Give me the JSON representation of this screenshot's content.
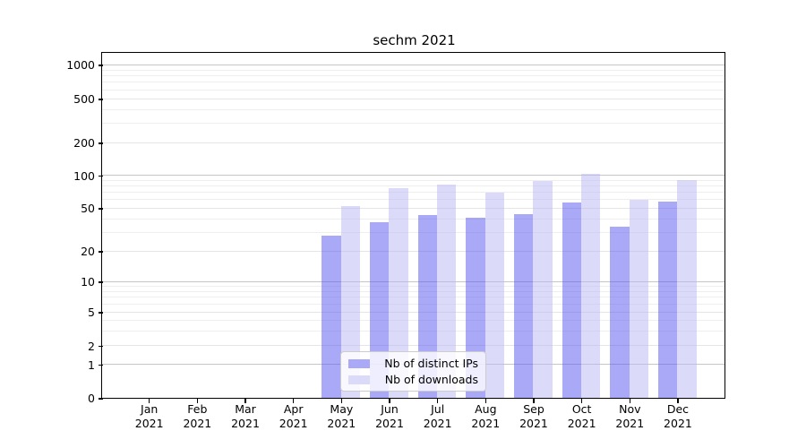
{
  "chart_data": {
    "type": "bar",
    "title": "sechm 2021",
    "year": "2021",
    "categories": [
      "Jan",
      "Feb",
      "Mar",
      "Apr",
      "May",
      "Jun",
      "Jul",
      "Aug",
      "Sep",
      "Oct",
      "Nov",
      "Dec"
    ],
    "series": [
      {
        "name": "Nb of distinct IPs",
        "values": [
          0,
          0,
          0,
          0,
          28,
          37,
          43,
          41,
          44,
          56,
          34,
          58
        ],
        "color": "#a9a9f8",
        "fill_rgba": "rgba(83,83,241,0.5)"
      },
      {
        "name": "Nb of downloads",
        "values": [
          0,
          0,
          0,
          0,
          52,
          76,
          82,
          70,
          89,
          103,
          60,
          90
        ],
        "color": "#dbdbf9",
        "fill_rgba": "rgba(183,183,243,0.5)"
      }
    ],
    "y_ticks": [
      0,
      1,
      2,
      5,
      10,
      20,
      50,
      100,
      200,
      500,
      1000
    ],
    "y_minor_gridlines": [
      3,
      4,
      6,
      7,
      8,
      9,
      30,
      40,
      60,
      70,
      80,
      90,
      300,
      400,
      600,
      700,
      800,
      900
    ],
    "y_decade_gridlines": [
      1,
      10,
      100,
      1000
    ],
    "yscale": "symlog",
    "ylim": [
      0,
      1300
    ],
    "grid": true,
    "legend_position": "lower center inside",
    "colors": {
      "axis": "#000000",
      "grid_decade": "#c6c6c6",
      "grid_minor": "#e5e5e5",
      "legend_border": "#cccccc"
    }
  }
}
